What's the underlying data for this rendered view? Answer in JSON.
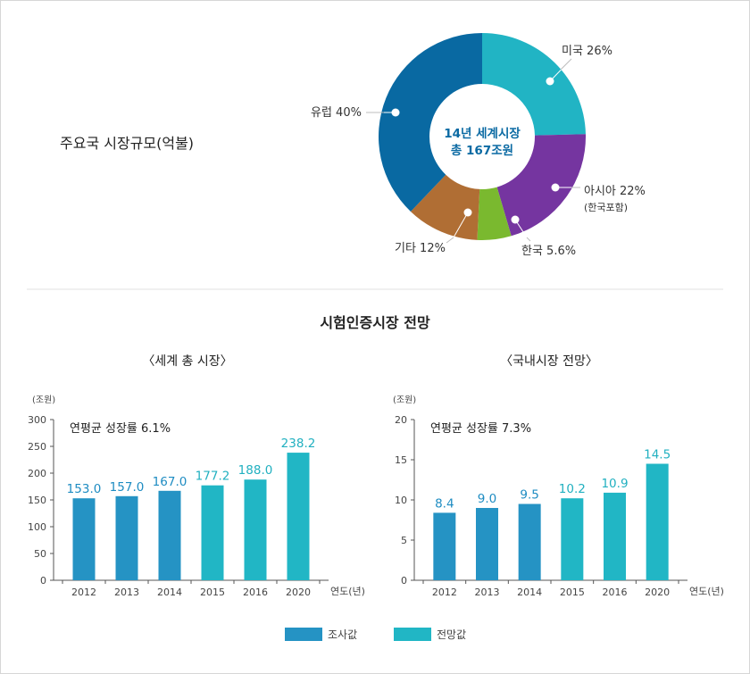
{
  "colors": {
    "survey": "#2593c4",
    "forecast": "#21b6c5",
    "donut_europe": "#0969a2",
    "donut_us": "#21b4c4",
    "donut_asia": "#7535a0",
    "donut_korea": "#7ab92f",
    "donut_other": "#b06e34",
    "axis_text": "#444444",
    "label_survey": "#1e8cc2",
    "label_forecast": "#21b0c0"
  },
  "pie": {
    "heading": "주요국 시장규모(억불)",
    "center_line1": "14년 세계시장",
    "center_line2": "총 167조원",
    "chart_data": {
      "type": "pie",
      "slices": [
        {
          "key": "us",
          "label": "미국 26%",
          "value": 26,
          "sub": ""
        },
        {
          "key": "asia",
          "label": "아시아 22%",
          "value": 22,
          "sub": "(한국포함)"
        },
        {
          "key": "korea",
          "label": "한국 5.6%",
          "value": 5.6,
          "sub": ""
        },
        {
          "key": "other",
          "label": "기타 12%",
          "value": 12,
          "sub": ""
        },
        {
          "key": "europe",
          "label": "유럽 40%",
          "value": 40,
          "sub": ""
        }
      ]
    }
  },
  "section_title": "시험인증시장 전망",
  "chart_data": [
    {
      "type": "bar",
      "title": "〈세계 총 시장〉",
      "unit": "(조원)",
      "annotation": "연평균 성장률 6.1%",
      "xlabel": "연도(년)",
      "ylim": [
        0,
        300
      ],
      "yticks": [
        0,
        50,
        100,
        150,
        200,
        250,
        300
      ],
      "categories": [
        "2012",
        "2013",
        "2014",
        "2015",
        "2016",
        "2020"
      ],
      "values": [
        153.0,
        157.0,
        167.0,
        177.2,
        188.0,
        238.2
      ],
      "value_labels": [
        "153.0",
        "157.0",
        "167.0",
        "177.2",
        "188.0",
        "238.2"
      ],
      "kinds": [
        "survey",
        "survey",
        "survey",
        "forecast",
        "forecast",
        "forecast"
      ]
    },
    {
      "type": "bar",
      "title": "〈국내시장 전망〉",
      "unit": "(조원)",
      "annotation": "연평균 성장률 7.3%",
      "xlabel": "연도(년)",
      "ylim": [
        0,
        20
      ],
      "yticks": [
        0,
        5,
        10,
        15,
        20
      ],
      "categories": [
        "2012",
        "2013",
        "2014",
        "2015",
        "2016",
        "2020"
      ],
      "values": [
        8.4,
        9.0,
        9.5,
        10.2,
        10.9,
        14.5
      ],
      "value_labels": [
        "8.4",
        "9.0",
        "9.5",
        "10.2",
        "10.9",
        "14.5"
      ],
      "kinds": [
        "survey",
        "survey",
        "survey",
        "forecast",
        "forecast",
        "forecast"
      ]
    }
  ],
  "legend": {
    "survey": "조사값",
    "forecast": "전망값"
  }
}
